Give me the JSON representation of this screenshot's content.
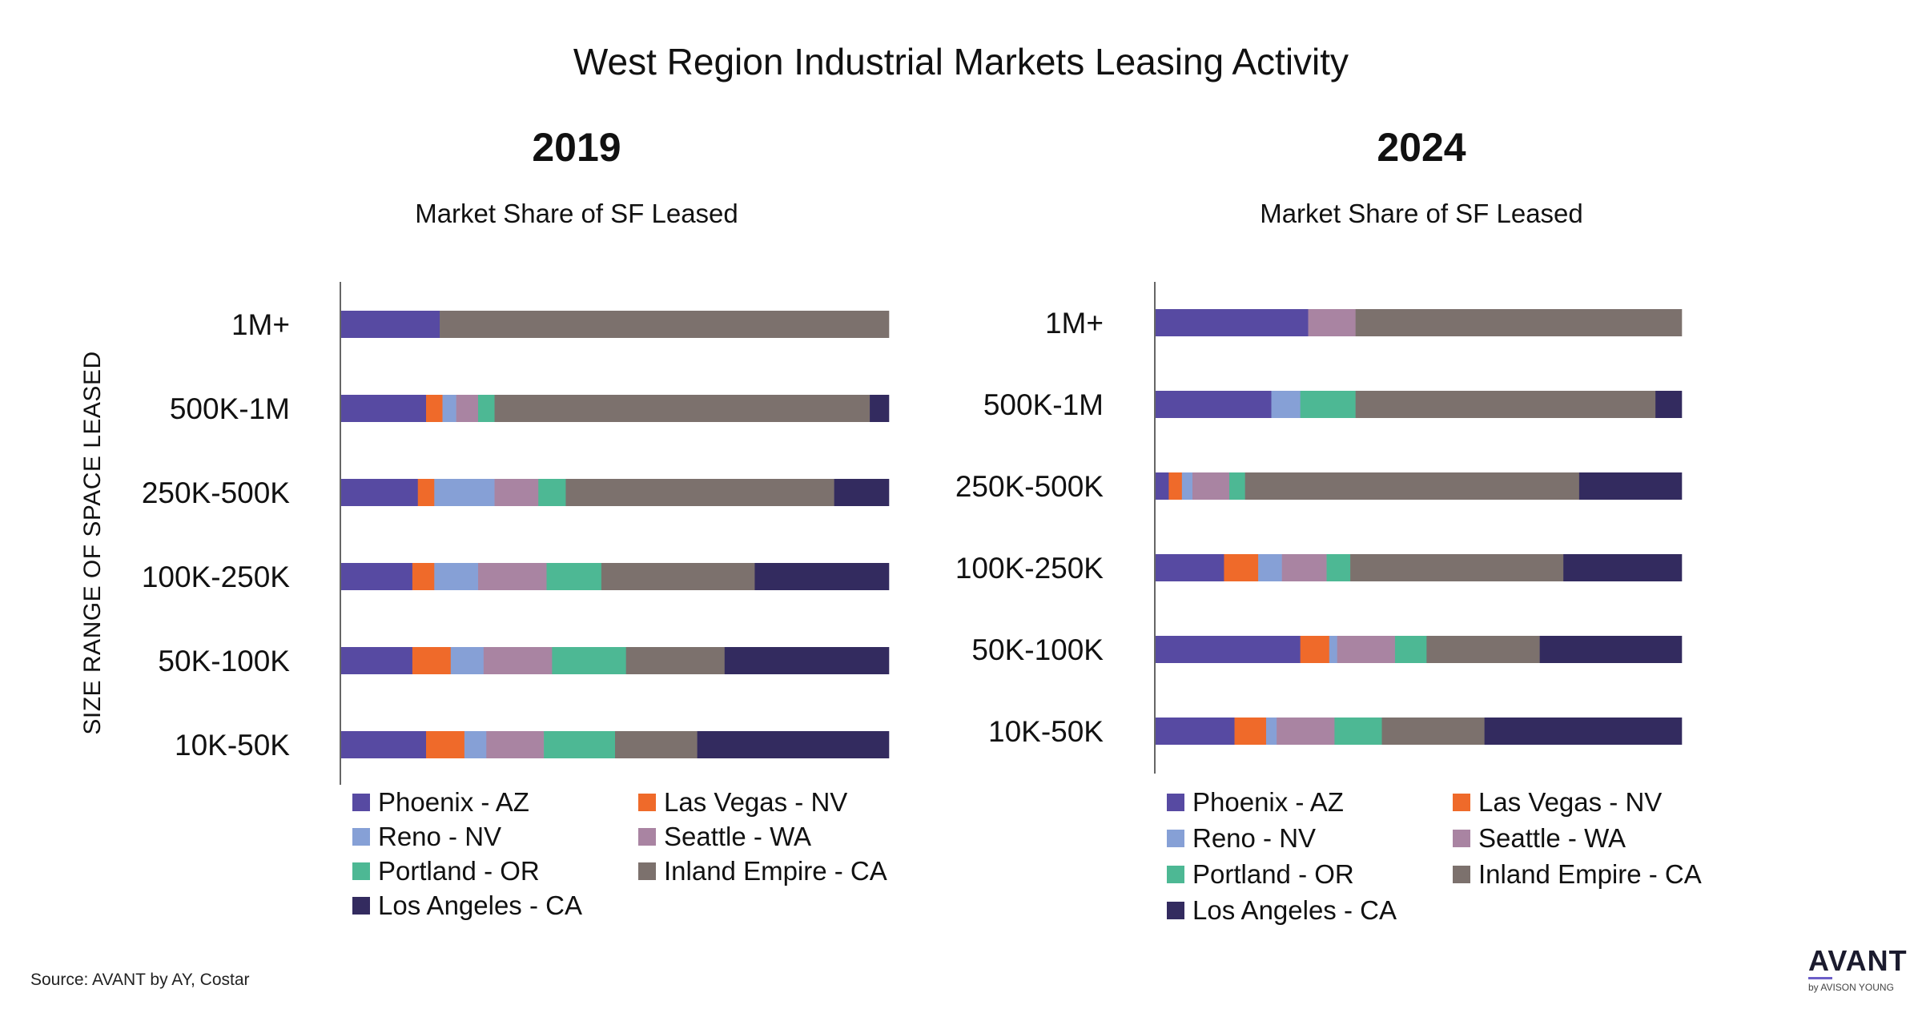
{
  "header": {
    "title": "West Region Industrial Markets Leasing Activity",
    "y_axis_label": "SIZE RANGE OF SPACE LEASED"
  },
  "colors": {
    "Phoenix - AZ": "#574aa2",
    "Las Vegas - NV": "#ef6a2a",
    "Reno - NV": "#86a0d6",
    "Seattle - WA": "#a984a2",
    "Portland - OR": "#4db894",
    "Inland Empire - CA": "#7c716d",
    "Los Angeles - CA": "#332b5f"
  },
  "chart_data": [
    {
      "type": "bar",
      "orientation": "horizontal",
      "stacked": "percent",
      "title": "2019",
      "subtitle": "Market Share of SF Leased",
      "categories": [
        "1M+",
        "500K-1M",
        "250K-500K",
        "100K-250K",
        "50K-100K",
        "10K-50K"
      ],
      "series": [
        {
          "name": "Phoenix - AZ",
          "values": [
            18,
            15.5,
            14,
            13,
            13,
            15.5
          ]
        },
        {
          "name": "Las Vegas - NV",
          "values": [
            0,
            3,
            3,
            4,
            7,
            7
          ]
        },
        {
          "name": "Reno - NV",
          "values": [
            0,
            2.5,
            11,
            8,
            6,
            4
          ]
        },
        {
          "name": "Seattle - WA",
          "values": [
            0,
            4,
            8,
            12.5,
            12.5,
            10.5
          ]
        },
        {
          "name": "Portland - OR",
          "values": [
            0,
            3,
            5,
            10,
            13.5,
            13
          ]
        },
        {
          "name": "Inland Empire - CA",
          "values": [
            82,
            68.5,
            49,
            28,
            18,
            15
          ]
        },
        {
          "name": "Los Angeles - CA",
          "values": [
            0,
            3.5,
            10,
            24.5,
            30,
            35
          ]
        }
      ],
      "legend": [
        "Phoenix - AZ",
        "Las Vegas - NV",
        "Reno - NV",
        "Seattle - WA",
        "Portland - OR",
        "Inland Empire - CA",
        "Los Angeles - CA"
      ]
    },
    {
      "type": "bar",
      "orientation": "horizontal",
      "stacked": "percent",
      "title": "2024",
      "subtitle": "Market Share of SF Leased",
      "categories": [
        "1M+",
        "500K-1M",
        "250K-500K",
        "100K-250K",
        "50K-100K",
        "10K-50K"
      ],
      "series": [
        {
          "name": "Phoenix - AZ",
          "values": [
            29,
            22,
            2.5,
            13,
            27.5,
            15
          ]
        },
        {
          "name": "Las Vegas - NV",
          "values": [
            0,
            0,
            2.5,
            6.5,
            5.5,
            6
          ]
        },
        {
          "name": "Reno - NV",
          "values": [
            0,
            5.5,
            2,
            4.5,
            1.5,
            2
          ]
        },
        {
          "name": "Seattle - WA",
          "values": [
            9,
            0,
            7,
            8.5,
            11,
            11
          ]
        },
        {
          "name": "Portland - OR",
          "values": [
            0,
            10.5,
            3,
            4.5,
            6,
            9
          ]
        },
        {
          "name": "Inland Empire - CA",
          "values": [
            62,
            57,
            63.5,
            40.5,
            21.5,
            19.5
          ]
        },
        {
          "name": "Los Angeles - CA",
          "values": [
            0,
            5,
            19.5,
            22.5,
            27,
            37.5
          ]
        }
      ],
      "legend": [
        "Phoenix - AZ",
        "Las Vegas - NV",
        "Reno - NV",
        "Seattle - WA",
        "Portland - OR",
        "Inland Empire - CA",
        "Los Angeles - CA"
      ]
    }
  ],
  "footer": {
    "source": "Source: AVANT by AY, Costar",
    "logo_word": "AVANT",
    "logo_sub": "by AVISON YOUNG"
  }
}
